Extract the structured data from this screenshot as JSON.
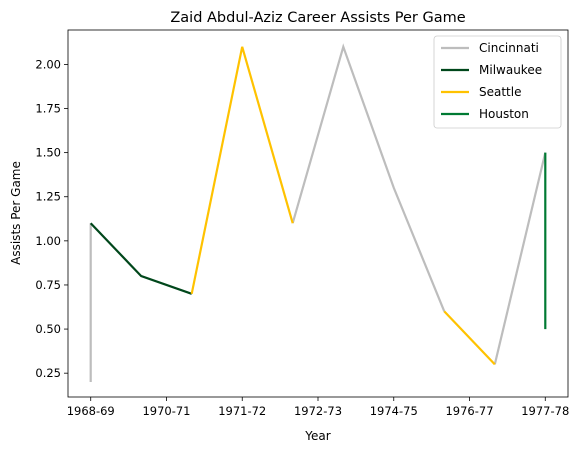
{
  "chart_data": {
    "type": "line",
    "title": "Zaid Abdul-Aziz Career Assists Per Game",
    "xlabel": "Year",
    "ylabel": "Assists Per Game",
    "x_ticks": [
      "1968-69",
      "1970-71",
      "1971-72",
      "1972-73",
      "1974-75",
      "1976-77",
      "1977-78"
    ],
    "y_ticks": [
      "0.25",
      "0.50",
      "0.75",
      "1.00",
      "1.25",
      "1.50",
      "1.75",
      "2.00"
    ],
    "ylim": [
      0.115,
      2.195
    ],
    "grid": false,
    "legend": "top-right",
    "series": [
      {
        "name": "Cincinnati",
        "color": "#bdbdbd",
        "segments": [
          [
            [
              0,
              0.2
            ],
            [
              0,
              1.1
            ]
          ],
          [
            [
              4,
              1.1
            ],
            [
              5,
              2.1
            ],
            [
              6,
              1.3
            ],
            [
              7,
              0.6
            ]
          ],
          [
            [
              8,
              0.3
            ],
            [
              9,
              1.5
            ]
          ]
        ]
      },
      {
        "name": "Milwaukee",
        "color": "#00471b",
        "segments": [
          [
            [
              0,
              1.1
            ],
            [
              1,
              0.8
            ],
            [
              2,
              0.7
            ]
          ]
        ]
      },
      {
        "name": "Seattle",
        "color": "#ffc200",
        "segments": [
          [
            [
              2,
              0.7
            ],
            [
              3,
              2.1
            ],
            [
              4,
              1.1
            ]
          ],
          [
            [
              7,
              0.6
            ],
            [
              8,
              0.3
            ]
          ]
        ]
      },
      {
        "name": "Houston",
        "color": "#007a33",
        "segments": [
          [
            [
              9,
              0.5
            ],
            [
              9,
              1.5
            ]
          ]
        ]
      }
    ]
  }
}
